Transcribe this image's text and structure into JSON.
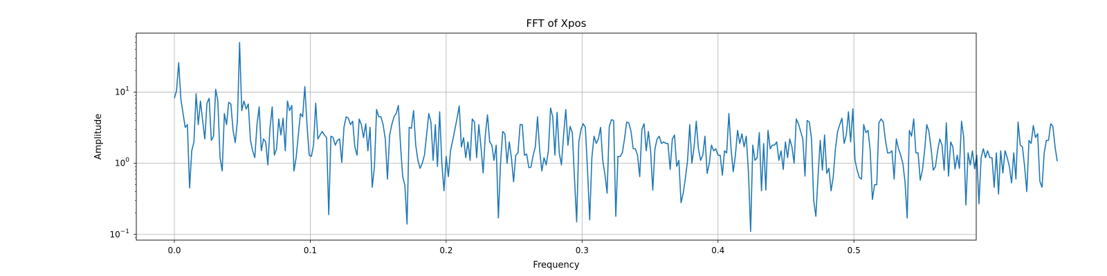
{
  "chart_data": {
    "type": "line",
    "title": "FFT of Xpos",
    "xlabel": "Frequency",
    "ylabel": "Amplitude",
    "xlim": [
      -0.028,
      0.59
    ],
    "ylim_log10": [
      -1.08,
      1.83
    ],
    "yscale": "log",
    "grid": true,
    "line_color": "#1f77b4",
    "x_ticks": [
      {
        "value": 0.0,
        "label": "0.0"
      },
      {
        "value": 0.1,
        "label": "0.1"
      },
      {
        "value": 0.2,
        "label": "0.2"
      },
      {
        "value": 0.3,
        "label": "0.3"
      },
      {
        "value": 0.4,
        "label": "0.4"
      },
      {
        "value": 0.5,
        "label": "0.5"
      }
    ],
    "y_ticks": [
      {
        "value": 0.1,
        "base": "10",
        "exp": "−1"
      },
      {
        "value": 1,
        "base": "10",
        "exp": "0"
      },
      {
        "value": 10,
        "base": "10",
        "exp": "1"
      }
    ],
    "series": [
      {
        "x_start": 0.0,
        "x_step": 0.0016,
        "values": [
          8.2,
          10.5,
          26,
          8,
          5,
          3.2,
          3.5,
          0.45,
          1.5,
          2,
          9.5,
          3.5,
          7.5,
          4,
          2.2,
          7,
          8.2,
          2.1,
          2.4,
          11,
          7.5,
          1.2,
          0.78,
          5,
          3.5,
          7.2,
          6.8,
          2.9,
          1.95,
          4,
          50,
          5.5,
          7.5,
          5.8,
          6.8,
          2.1,
          1.5,
          1.2,
          3.5,
          6.2,
          1.5,
          2.2,
          2,
          0.95,
          3.2,
          6.2,
          1.3,
          1.6,
          4.2,
          2.5,
          4.3,
          1.5,
          7.5,
          5.5,
          6.5,
          0.78,
          1.2,
          2.5,
          5,
          4.5,
          12,
          3.5,
          1.3,
          1.25,
          1.8,
          7,
          2.2,
          2.5,
          2.8,
          2.5,
          2.3,
          0.19,
          2.4,
          2.3,
          1.8,
          2.1,
          2.2,
          1.03,
          3.2,
          4.5,
          4.3,
          3.5,
          3.9,
          1.7,
          1.3,
          4.2,
          3.5,
          2.3,
          3.6,
          1.5,
          3.2,
          0.46,
          0.88,
          5.7,
          4.5,
          4.5,
          3.5,
          2.2,
          0.6,
          2.5,
          3.5,
          4.5,
          5,
          6.5,
          1.8,
          0.65,
          0.49,
          0.14,
          3.2,
          3.1,
          5.5,
          1.8,
          1.1,
          0.85,
          1,
          1.3,
          2.5,
          5,
          3.8,
          1.1,
          3.5,
          0.9,
          5.3,
          1,
          0.41,
          1.25,
          0.65,
          1.5,
          2.1,
          3,
          4.3,
          6.4,
          1.7,
          2.3,
          1.2,
          2,
          1.1,
          4.2,
          3.8,
          1.2,
          3.5,
          1.7,
          0.73,
          2.5,
          4.8,
          2,
          1.8,
          1.1,
          1.8,
          0.17,
          1,
          2.8,
          2.6,
          1,
          2,
          1.2,
          0.55,
          1.3,
          1.4,
          3.5,
          3.5,
          1.3,
          1.35,
          0.87,
          0.88,
          1.3,
          1.7,
          4.5,
          1.5,
          0.78,
          1.2,
          0.95,
          1.5,
          6,
          4.5,
          1.3,
          5.2,
          1.4,
          0.95,
          2.5,
          5.7,
          1.8,
          3.3,
          2.7,
          0.62,
          0.15,
          2,
          3,
          3.6,
          3.2,
          0.8,
          0.16,
          1.2,
          2.4,
          1.9,
          2.2,
          3.2,
          1.1,
          0.7,
          0.38,
          3.3,
          4.1,
          4,
          0.18,
          1.25,
          1.25,
          1.4,
          2.2,
          3.8,
          3.7,
          2.8,
          1.6,
          1.6,
          1.3,
          0.65,
          3,
          3.6,
          1.5,
          2.8,
          1.5,
          0.42,
          1.6,
          2.2,
          2.4,
          1.9,
          2,
          1.9,
          1.9,
          0.82,
          2.2,
          2.5,
          0.9,
          1.1,
          0.28,
          0.38,
          0.62,
          1.1,
          3.5,
          1,
          1.7,
          3.9,
          1.6,
          1.1,
          1.3,
          2.4,
          0.72,
          1,
          1.8,
          1.5,
          1.6,
          1.3,
          1.3,
          0.68,
          1.5,
          1.4,
          5,
          1.6,
          0.76,
          1.3,
          2.9,
          1.9,
          2.6,
          1.7,
          2.4,
          0.75,
          0.11,
          1.8,
          1.1,
          1.2,
          2.7,
          0.41,
          1.9,
          0.42,
          2.9,
          1.6,
          1.8,
          1.8,
          2,
          1.1,
          1.5,
          0.82,
          2,
          1.2,
          2.2,
          1.7,
          1,
          4.2,
          3.6,
          2.8,
          2.2,
          0.66,
          4,
          3.8,
          2.2,
          0.3,
          0.18,
          0.65,
          2.1,
          0.8,
          2.5,
          0.72,
          0.85,
          0.41,
          0.65,
          1.6,
          2.8,
          3.5,
          4.3,
          1.9,
          2.5,
          5.3,
          2,
          5.8,
          1.1,
          0.8,
          0.63,
          0.6,
          3.5,
          2.7,
          2.9,
          1.5,
          0.31,
          0.5,
          0.5,
          3.7,
          4.2,
          3.8,
          2.1,
          1.4,
          1.4,
          1.5,
          0.6,
          2.2,
          1.6,
          1.3,
          1,
          0.55,
          0.17,
          2.9,
          2.4,
          4.2,
          1.4,
          1.4,
          0.58,
          0.8,
          1.5,
          3.5,
          2.8,
          1.6,
          0.8,
          0.9,
          1.5,
          2.2,
          1.8,
          0.8,
          3.7,
          0.66,
          2,
          1.7,
          0.83,
          1.3,
          0.85,
          3.9,
          2.3,
          0.26,
          1.4,
          0.95,
          1.5,
          0.84,
          1.3,
          0.27,
          1.2,
          1.6,
          1.2,
          1.5,
          1.2,
          1.2,
          0.46,
          1.4,
          0.37,
          1.5,
          0.73,
          1.5,
          1.2,
          0.9,
          0.53,
          1.4,
          0.6,
          3.8,
          1.8,
          1.7,
          0.9,
          0.4,
          2.1,
          1.9,
          3.4,
          2.3,
          2.6,
          0.56,
          0.46,
          1.4,
          2.1,
          2.1,
          3.6,
          3.3,
          1.7,
          1.07
        ]
      }
    ]
  }
}
